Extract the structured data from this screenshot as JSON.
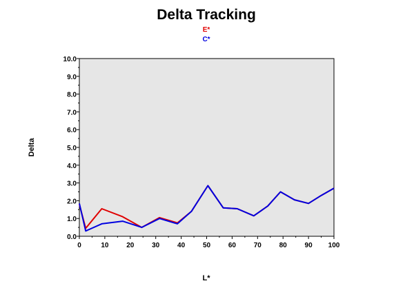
{
  "chart_data": {
    "type": "line",
    "title": "Delta Tracking",
    "xlabel": "L*",
    "ylabel": "Delta",
    "xlim": [
      0,
      100
    ],
    "ylim": [
      0,
      10
    ],
    "x_ticks": [
      0,
      10,
      20,
      30,
      40,
      50,
      60,
      70,
      80,
      90,
      100
    ],
    "y_ticks": [
      "0.0",
      "1.0",
      "2.0",
      "3.0",
      "4.0",
      "5.0",
      "6.0",
      "7.0",
      "8.0",
      "9.0",
      "10.0"
    ],
    "grid": false,
    "legend_position": "top-center",
    "plot_background": "#e6e6e6",
    "series": [
      {
        "name": "E*",
        "color": "#e00000",
        "x": [
          0,
          2.5,
          8.8,
          17,
          24.5,
          31.5,
          38.5,
          44,
          50.5,
          56.5,
          62,
          68.5,
          74,
          79,
          84.5,
          90,
          95,
          100
        ],
        "y": [
          1.8,
          0.45,
          1.55,
          1.1,
          0.5,
          1.05,
          0.75,
          1.4,
          2.85,
          1.6,
          1.55,
          1.15,
          1.7,
          2.5,
          2.05,
          1.85,
          2.3,
          2.7
        ]
      },
      {
        "name": "C*",
        "color": "#0000e0",
        "x": [
          0,
          2.5,
          8.8,
          17,
          24.5,
          31.5,
          38.5,
          44,
          50.5,
          56.5,
          62,
          68.5,
          74,
          79,
          84.5,
          90,
          95,
          100
        ],
        "y": [
          1.85,
          0.3,
          0.7,
          0.85,
          0.5,
          1.0,
          0.7,
          1.4,
          2.85,
          1.6,
          1.55,
          1.15,
          1.7,
          2.5,
          2.05,
          1.85,
          2.3,
          2.7
        ]
      }
    ]
  }
}
